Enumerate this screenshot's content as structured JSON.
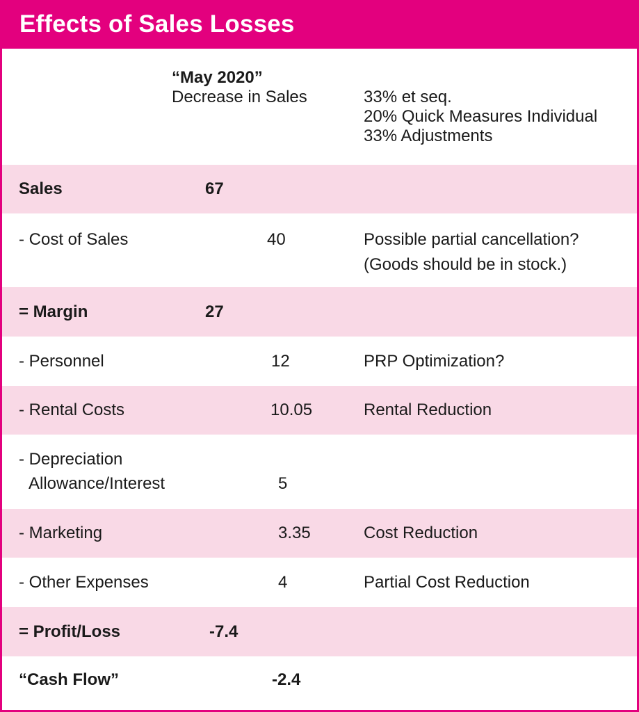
{
  "title": "Effects of Sales Losses",
  "header": {
    "period": "“May 2020”",
    "subtitle": "Decrease in Sales",
    "notes": [
      "33% et seq.",
      "20% Quick Measures Individual",
      "33% Adjustments"
    ]
  },
  "rows": [
    {
      "label": "Sales",
      "value_a": "67",
      "value_b": "",
      "note": "",
      "note2": ""
    },
    {
      "label": "- Cost of Sales",
      "value_a": "",
      "value_b": "40",
      "note": "Possible partial cancellation?",
      "note2": "(Goods should be in stock.)"
    },
    {
      "label": "= Margin",
      "value_a": "27",
      "value_b": "",
      "note": "",
      "note2": ""
    },
    {
      "label": "- Personnel",
      "value_a": "",
      "value_b": "12",
      "note": "PRP Optimization?",
      "note2": ""
    },
    {
      "label": "- Rental Costs",
      "value_a": "",
      "value_b": "10.05",
      "note": "Rental Reduction",
      "note2": ""
    },
    {
      "label": "- Depreciation",
      "label2": "Allowance/Interest",
      "value_a": "",
      "value_b": "5",
      "note": "",
      "note2": ""
    },
    {
      "label": "- Marketing",
      "value_a": "",
      "value_b": "3.35",
      "note": "Cost Reduction",
      "note2": ""
    },
    {
      "label": "- Other Expenses",
      "value_a": "",
      "value_b": "4",
      "note": "Partial Cost Reduction",
      "note2": ""
    },
    {
      "label": "= Profit/Loss",
      "value_a": "-7.4",
      "value_b": "",
      "note": "",
      "note2": ""
    },
    {
      "label": "“Cash Flow”",
      "value_a": "",
      "value_b": "-2.4",
      "note": "",
      "note2": ""
    }
  ],
  "colors": {
    "accent": "#e3007e",
    "row_shade": "#f9d9e6"
  }
}
